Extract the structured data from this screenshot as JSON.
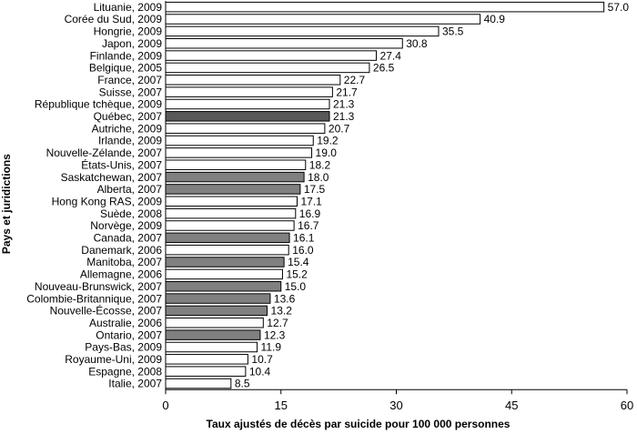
{
  "chart_data": {
    "type": "bar",
    "orientation": "horizontal",
    "xlabel": "Taux ajustés de décès par suicide pour 100 000 personnes",
    "ylabel": "Pays et juridictions",
    "xlim": [
      0,
      60
    ],
    "xticks": [
      "0",
      "15",
      "30",
      "45",
      "60"
    ],
    "grid": false,
    "legend": "none",
    "colors": {
      "country": "#ffffff",
      "province": "#808080",
      "quebec": "#595959",
      "outline": "#000000"
    },
    "categories": [
      "Lituanie, 2009",
      "Corée du Sud, 2009",
      "Hongrie, 2009",
      "Japon, 2009",
      "Finlande, 2009",
      "Belgique, 2005",
      "France, 2007",
      "Suisse, 2007",
      "République tchèque, 2009",
      "Québec, 2007",
      "Autriche, 2009",
      "Irlande, 2009",
      "Nouvelle-Zélande, 2007",
      "États-Unis, 2007",
      "Saskatchewan, 2007",
      "Alberta, 2007",
      "Hong Kong RAS, 2009",
      "Suède, 2008",
      "Norvège, 2009",
      "Canada, 2007",
      "Danemark, 2006",
      "Manitoba, 2007",
      "Allemagne, 2006",
      "Nouveau-Brunswick, 2007",
      "Colombie-Britannique, 2007",
      "Nouvelle-Écosse, 2007",
      "Australie, 2006",
      "Ontario, 2007",
      "Pays-Bas, 2009",
      "Royaume-Uni, 2009",
      "Espagne, 2008",
      "Italie, 2007"
    ],
    "values": [
      57.0,
      40.9,
      35.5,
      30.8,
      27.4,
      26.5,
      22.7,
      21.7,
      21.3,
      21.3,
      20.7,
      19.2,
      19.0,
      18.2,
      18.0,
      17.5,
      17.1,
      16.9,
      16.7,
      16.1,
      16.0,
      15.4,
      15.2,
      15.0,
      13.6,
      13.2,
      12.7,
      12.3,
      11.9,
      10.7,
      10.4,
      8.5
    ],
    "value_labels": [
      "57.0",
      "40.9",
      "35.5",
      "30.8",
      "27.4",
      "26.5",
      "22.7",
      "21.7",
      "21.3",
      "21.3",
      "20.7",
      "19.2",
      "19.0",
      "18.2",
      "18.0",
      "17.5",
      "17.1",
      "16.9",
      "16.7",
      "16.1",
      "16.0",
      "15.4",
      "15.2",
      "15.0",
      "13.6",
      "13.2",
      "12.7",
      "12.3",
      "11.9",
      "10.7",
      "10.4",
      "8.5"
    ],
    "bar_kind": [
      "country",
      "country",
      "country",
      "country",
      "country",
      "country",
      "country",
      "country",
      "country",
      "quebec",
      "country",
      "country",
      "country",
      "country",
      "province",
      "province",
      "country",
      "country",
      "country",
      "province",
      "country",
      "province",
      "country",
      "province",
      "province",
      "province",
      "country",
      "province",
      "country",
      "country",
      "country",
      "country"
    ]
  }
}
